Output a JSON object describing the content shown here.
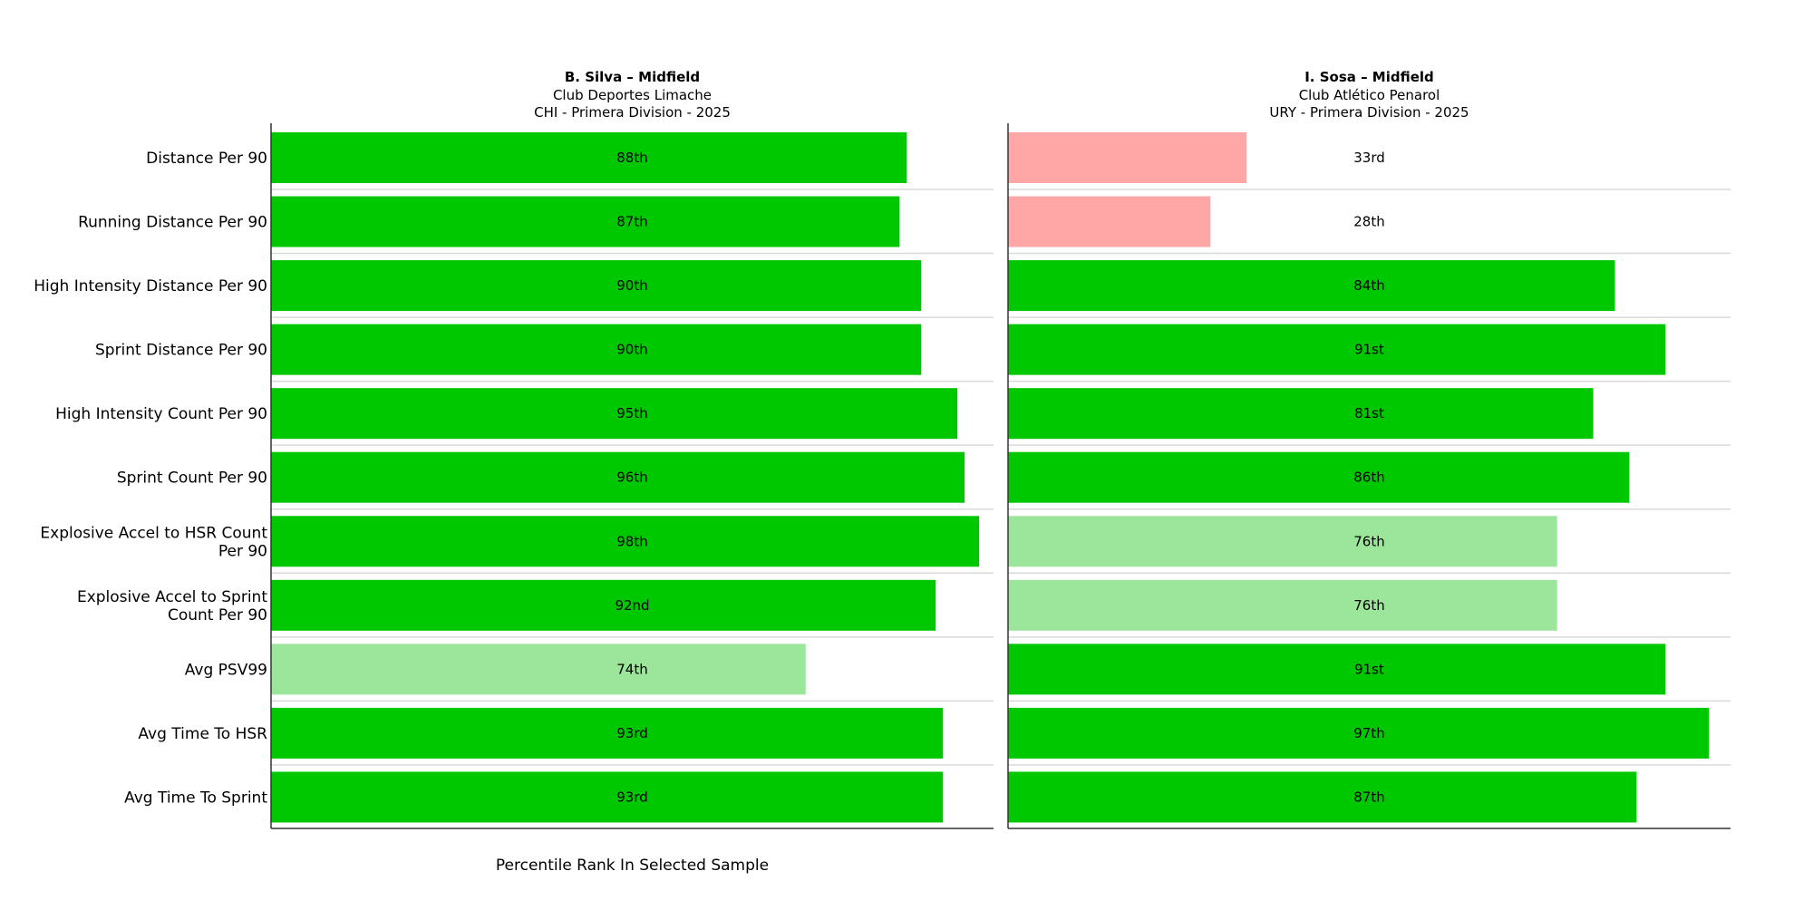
{
  "chart_data": {
    "type": "bar",
    "orientation": "horizontal",
    "xlabel": "Percentile Rank In Selected Sample",
    "xlim": [
      0,
      100
    ],
    "categories": [
      "Distance Per 90",
      "Running Distance Per 90",
      "High Intensity Distance Per 90",
      "Sprint Distance Per 90",
      "High Intensity Count Per 90",
      "Sprint Count Per 90",
      "Explosive Accel to HSR Count Per 90",
      "Explosive Accel to Sprint Count Per 90",
      "Avg PSV99",
      "Avg Time To HSR",
      "Avg Time To Sprint"
    ],
    "category_lines": [
      [
        "Distance Per 90"
      ],
      [
        "Running Distance Per 90"
      ],
      [
        "High Intensity Distance Per 90"
      ],
      [
        "Sprint Distance Per 90"
      ],
      [
        "High Intensity Count Per 90"
      ],
      [
        "Sprint Count Per 90"
      ],
      [
        "Explosive Accel to HSR Count",
        "Per 90"
      ],
      [
        "Explosive Accel to Sprint",
        "Count Per 90"
      ],
      [
        "Avg PSV99"
      ],
      [
        "Avg Time To HSR"
      ],
      [
        "Avg Time To Sprint"
      ]
    ],
    "colors": {
      "high": "#00c800",
      "mid": "#9ce69c",
      "low": "#ffa6a6",
      "separator": "#d9d9d9",
      "axis": "#333333",
      "text": "#000000"
    },
    "series": [
      {
        "name": "B. Silva – Midfield",
        "title_lines": [
          "B. Silva – Midfield",
          "Club Deportes Limache",
          "CHI - Primera Division - 2025"
        ],
        "values": [
          88,
          87,
          90,
          90,
          95,
          96,
          98,
          92,
          74,
          93,
          93
        ],
        "labels": [
          "88th",
          "87th",
          "90th",
          "90th",
          "95th",
          "96th",
          "98th",
          "92nd",
          "74th",
          "93rd",
          "93rd"
        ]
      },
      {
        "name": "I. Sosa – Midfield",
        "title_lines": [
          "I. Sosa – Midfield",
          "Club Atlético Penarol",
          "URY - Primera Division - 2025"
        ],
        "values": [
          33,
          28,
          84,
          91,
          81,
          86,
          76,
          76,
          91,
          97,
          87
        ],
        "labels": [
          "33rd",
          "28th",
          "84th",
          "91st",
          "81st",
          "86th",
          "76th",
          "76th",
          "91st",
          "97th",
          "87th"
        ]
      }
    ]
  }
}
